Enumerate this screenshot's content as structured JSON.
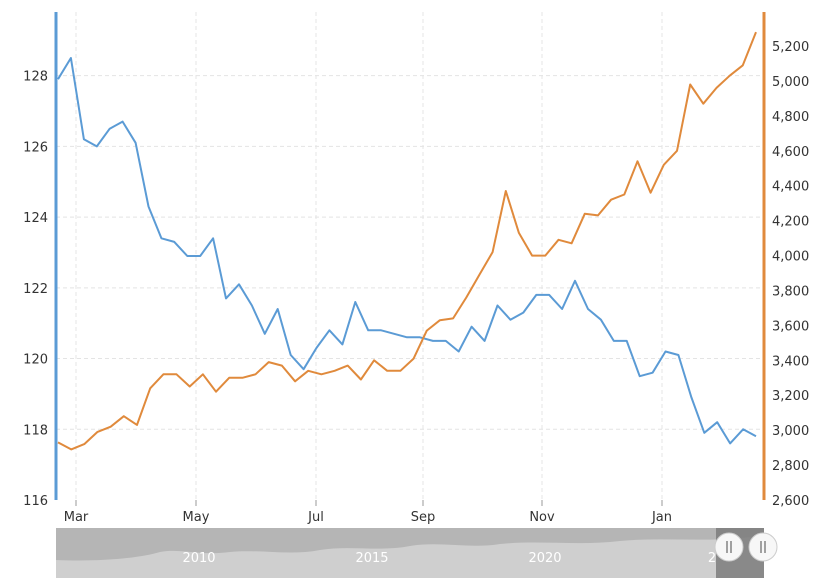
{
  "chart_data": {
    "type": "line",
    "x_tick_labels": [
      "Mar",
      "May",
      "Jul",
      "Sep",
      "Nov",
      "Jan"
    ],
    "y_left": {
      "ticks": [
        116,
        118,
        120,
        122,
        124,
        126,
        128
      ],
      "range": [
        116,
        129.8
      ]
    },
    "y_right": {
      "ticks": [
        "2,600",
        "2,800",
        "3,000",
        "3,200",
        "3,400",
        "3,600",
        "3,800",
        "4,000",
        "4,200",
        "4,400",
        "4,600",
        "4,800",
        "5,000",
        "5,200"
      ],
      "range": [
        2600,
        5395
      ]
    },
    "grid": true,
    "series": [
      {
        "axis": "left",
        "color": "#5b9bd5",
        "values": [
          127.9,
          128.5,
          126.2,
          126.0,
          126.5,
          126.7,
          126.1,
          124.3,
          123.4,
          123.3,
          122.9,
          122.9,
          123.4,
          121.7,
          122.1,
          121.5,
          120.7,
          121.4,
          120.1,
          119.7,
          120.3,
          120.8,
          120.4,
          121.6,
          120.8,
          120.8,
          120.7,
          120.6,
          120.6,
          120.5,
          120.5,
          120.2,
          120.9,
          120.5,
          121.5,
          121.1,
          121.3,
          121.8,
          121.8,
          121.4,
          122.2,
          121.4,
          121.1,
          120.5,
          120.5,
          119.5,
          119.6,
          120.2,
          120.1,
          118.9,
          117.9,
          118.2,
          117.6,
          118.0,
          117.8
        ]
      },
      {
        "axis": "right",
        "color": "#e08a3c",
        "values": [
          2930,
          2890,
          2920,
          2990,
          3020,
          3080,
          3030,
          3240,
          3320,
          3320,
          3250,
          3320,
          3220,
          3300,
          3300,
          3320,
          3390,
          3370,
          3280,
          3340,
          3320,
          3340,
          3370,
          3290,
          3400,
          3340,
          3340,
          3410,
          3570,
          3630,
          3640,
          3760,
          3890,
          4020,
          4370,
          4130,
          4000,
          4000,
          4090,
          4070,
          4240,
          4230,
          4320,
          4350,
          4540,
          4360,
          4520,
          4600,
          4980,
          4870,
          4960,
          5030,
          5090,
          5280
        ]
      }
    ],
    "navigator": {
      "years": [
        "2010",
        "2015",
        "2020",
        "2"
      ]
    }
  },
  "colors": {
    "left_axis": "#5b9bd5",
    "right_axis": "#e08a3c",
    "navigator_bg": "#b5b5b5",
    "navigator_mask": "#7d7d7d"
  },
  "icons": {
    "left_handle": "grip-handle-icon",
    "right_handle": "grip-handle-icon"
  }
}
